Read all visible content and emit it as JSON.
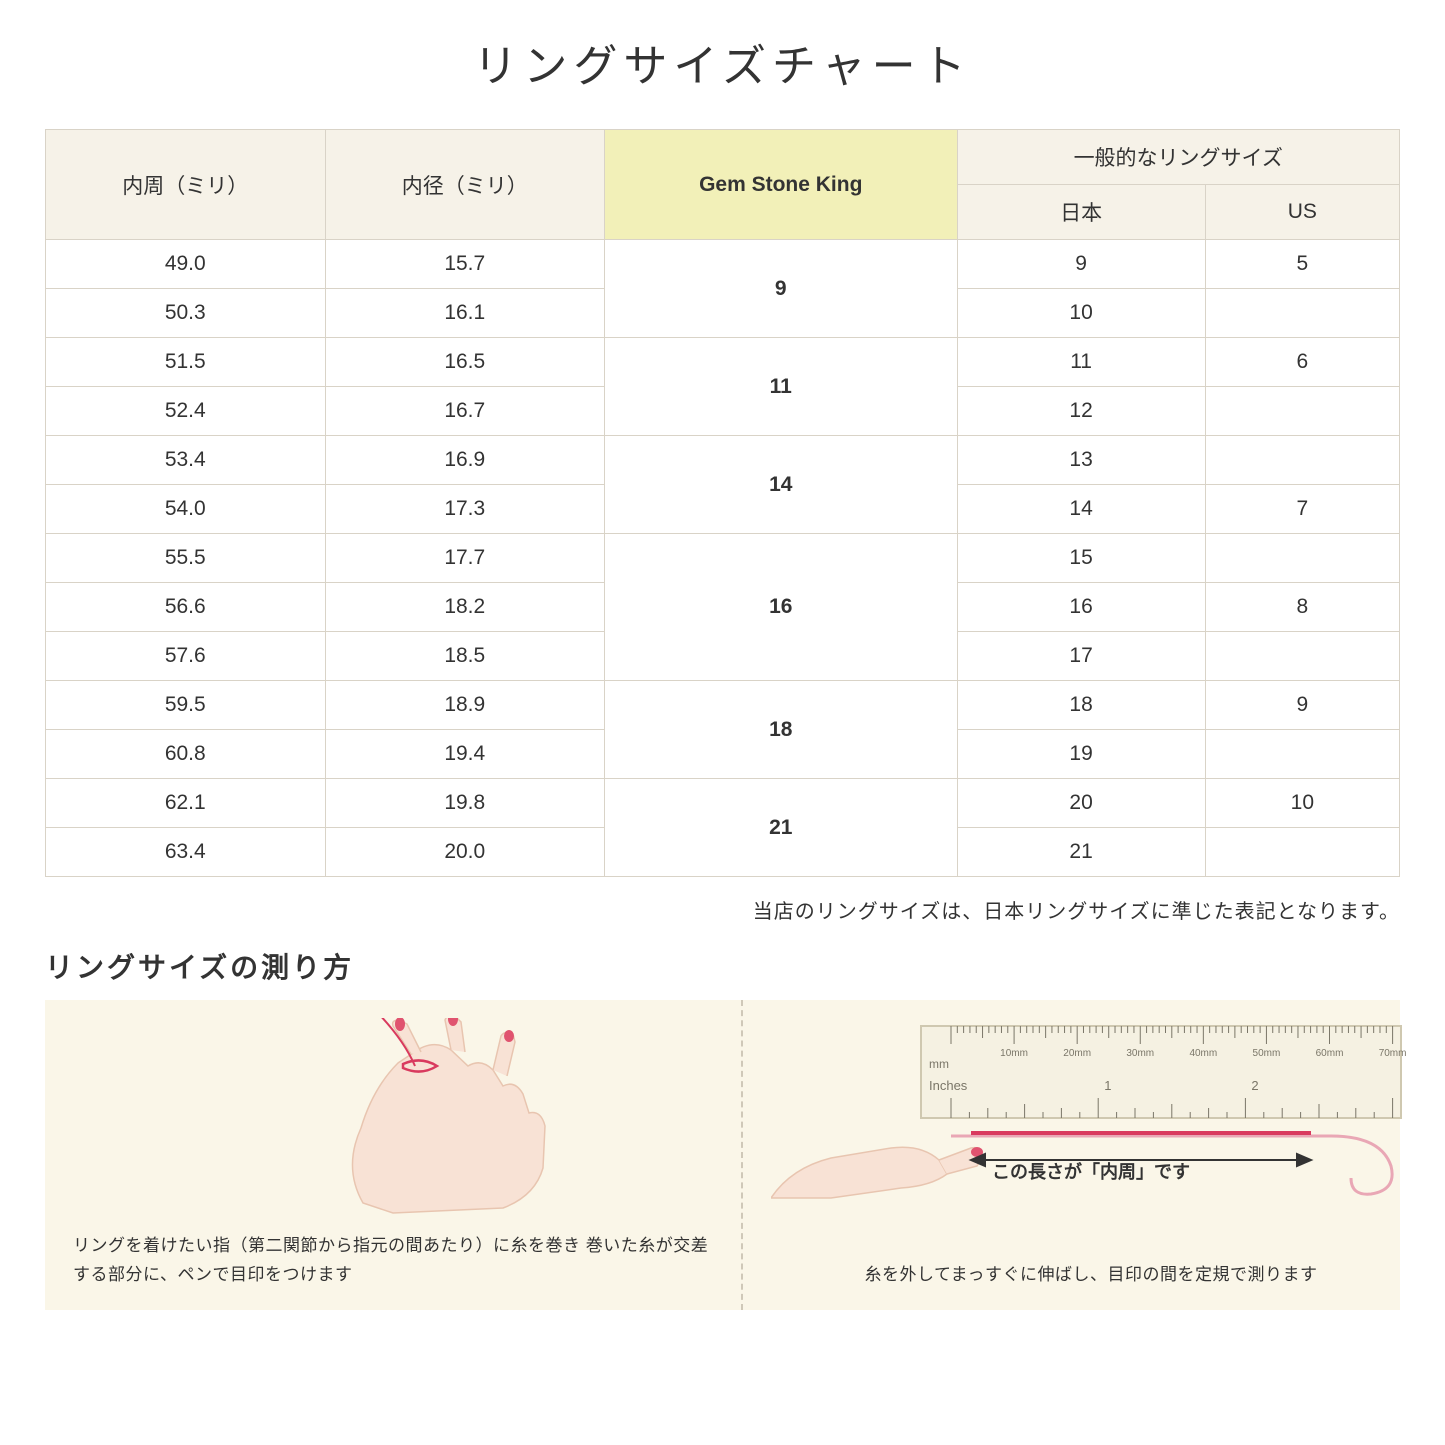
{
  "title": "リングサイズチャート",
  "table": {
    "headers": {
      "circumference": "内周（ミリ）",
      "diameter": "内径（ミリ）",
      "gsk": "Gem Stone King",
      "general": "一般的なリングサイズ",
      "japan": "日本",
      "us": "US"
    },
    "groups": [
      {
        "gsk": "9",
        "rows": [
          {
            "c": "49.0",
            "d": "15.7",
            "jp": "9",
            "us": "5"
          },
          {
            "c": "50.3",
            "d": "16.1",
            "jp": "10",
            "us": ""
          }
        ]
      },
      {
        "gsk": "11",
        "rows": [
          {
            "c": "51.5",
            "d": "16.5",
            "jp": "11",
            "us": "6"
          },
          {
            "c": "52.4",
            "d": "16.7",
            "jp": "12",
            "us": ""
          }
        ]
      },
      {
        "gsk": "14",
        "rows": [
          {
            "c": "53.4",
            "d": "16.9",
            "jp": "13",
            "us": ""
          },
          {
            "c": "54.0",
            "d": "17.3",
            "jp": "14",
            "us": "7"
          }
        ]
      },
      {
        "gsk": "16",
        "rows": [
          {
            "c": "55.5",
            "d": "17.7",
            "jp": "15",
            "us": ""
          },
          {
            "c": "56.6",
            "d": "18.2",
            "jp": "16",
            "us": "8"
          },
          {
            "c": "57.6",
            "d": "18.5",
            "jp": "17",
            "us": ""
          }
        ]
      },
      {
        "gsk": "18",
        "rows": [
          {
            "c": "59.5",
            "d": "18.9",
            "jp": "18",
            "us": "9"
          },
          {
            "c": "60.8",
            "d": "19.4",
            "jp": "19",
            "us": ""
          }
        ]
      },
      {
        "gsk": "21",
        "rows": [
          {
            "c": "62.1",
            "d": "19.8",
            "jp": "20",
            "us": "10"
          },
          {
            "c": "63.4",
            "d": "20.0",
            "jp": "21",
            "us": ""
          }
        ]
      }
    ]
  },
  "note": "当店のリングサイズは、日本リングサイズに準じた表記となります。",
  "howto": {
    "title": "リングサイズの測り方",
    "left_caption": "リングを着けたい指（第二関節から指元の間あたり）に糸を巻き\n巻いた糸が交差する部分に、ペンで目印をつけます",
    "right_caption": "糸を外してまっすぐに伸ばし、目印の間を定規で測ります",
    "ruler_label": "この長さが「内周」です",
    "ruler_ticks_mm": [
      "10mm",
      "20mm",
      "30mm",
      "40mm",
      "50mm",
      "60mm",
      "70mm"
    ],
    "ruler_unit_mm": "mm",
    "ruler_unit_in": "Inches",
    "ruler_ticks_in": [
      "1",
      "2"
    ]
  },
  "colors": {
    "header_bg": "#f6f2e8",
    "highlight_bg": "#f2f0b8",
    "border": "#d9d3c7",
    "panel_bg": "#faf6e8",
    "skin": "#f8e2d5",
    "skin_dark": "#e8c5b0",
    "nail": "#e0536f",
    "thread": "#d93a5e",
    "ruler_body": "#f5f1e2",
    "ruler_tick": "#7a7668"
  }
}
